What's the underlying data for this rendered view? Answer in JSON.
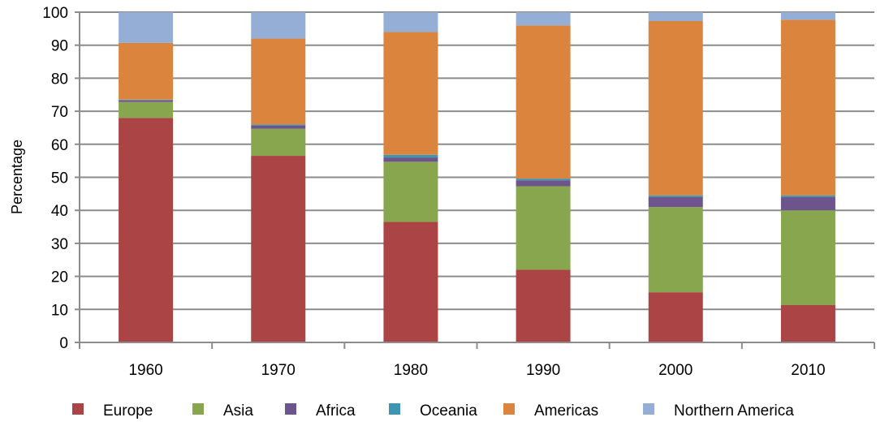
{
  "chart_data": {
    "type": "bar",
    "stacked": true,
    "categories": [
      "1960",
      "1970",
      "1980",
      "1990",
      "2000",
      "2010"
    ],
    "series": [
      {
        "name": "Europe",
        "color": "#ab4444",
        "values": [
          68,
          56.5,
          36.5,
          22,
          15.2,
          11.3
        ]
      },
      {
        "name": "Asia",
        "color": "#88a64d",
        "values": [
          4.8,
          8.2,
          18.2,
          25.3,
          25.8,
          28.7
        ]
      },
      {
        "name": "Africa",
        "color": "#6e548d",
        "values": [
          0.5,
          1.0,
          1.3,
          1.8,
          3.0,
          4.0
        ]
      },
      {
        "name": "Oceania",
        "color": "#3c96b0",
        "values": [
          0.2,
          0.3,
          0.8,
          0.5,
          0.5,
          0.5
        ]
      },
      {
        "name": "Americas",
        "color": "#db843d",
        "values": [
          17.2,
          26,
          37.2,
          46.4,
          52.8,
          53.2
        ]
      },
      {
        "name": "Northern America",
        "color": "#94aed6",
        "values": [
          9.3,
          8,
          6,
          4,
          2.7,
          2.3
        ]
      }
    ],
    "title": "",
    "xlabel": "",
    "ylabel": "Percentage",
    "ylim": [
      0,
      100
    ],
    "yticks": [
      0,
      10,
      20,
      30,
      40,
      50,
      60,
      70,
      80,
      90,
      100
    ],
    "grid": true,
    "legend_position": "bottom"
  }
}
